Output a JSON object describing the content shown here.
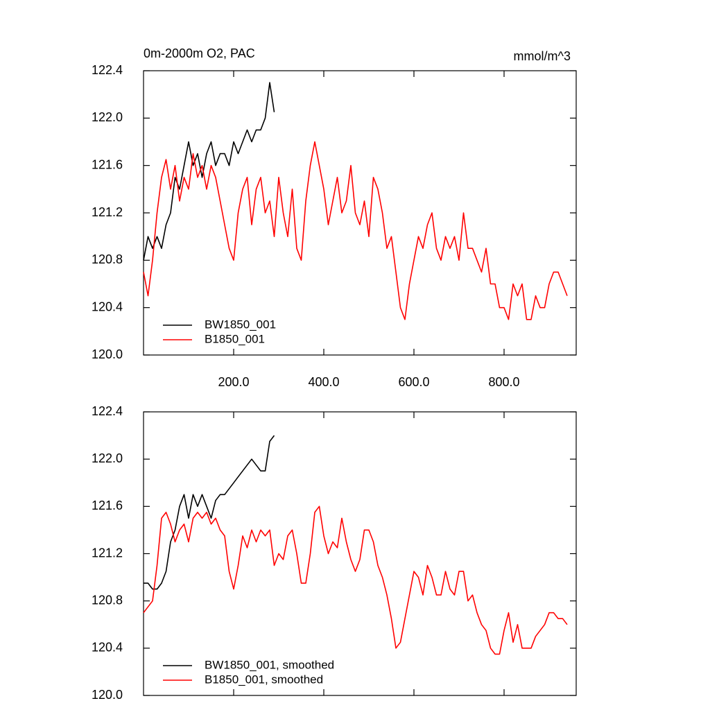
{
  "chart_data": [
    {
      "type": "line",
      "title": "0m-2000m O2, PAC",
      "units": "mmol/m^3",
      "xlim": [
        0,
        960
      ],
      "ylim": [
        120.0,
        122.4
      ],
      "xticks": [
        {
          "value": 200,
          "label": "200.0"
        },
        {
          "value": 400,
          "label": "400.0"
        },
        {
          "value": 600,
          "label": "600.0"
        },
        {
          "value": 800,
          "label": "800.0"
        }
      ],
      "yticks": [
        {
          "value": 120.0,
          "label": "120.0"
        },
        120.4,
        120.8,
        121.2,
        121.6,
        {
          "value": 122.0,
          "label": "122.0"
        },
        122.4
      ],
      "legend": "lower left",
      "series": [
        {
          "name": "BW1850_001",
          "color": "#000000",
          "x": [
            0,
            10,
            20,
            30,
            40,
            50,
            60,
            70,
            80,
            90,
            100,
            110,
            120,
            130,
            140,
            150,
            160,
            170,
            180,
            190,
            200,
            210,
            220,
            230,
            240,
            250,
            260,
            270,
            280,
            290
          ],
          "values": [
            120.8,
            121.0,
            120.9,
            121.0,
            120.9,
            121.1,
            121.2,
            121.5,
            121.4,
            121.6,
            121.8,
            121.6,
            121.7,
            121.5,
            121.7,
            121.8,
            121.6,
            121.7,
            121.7,
            121.6,
            121.8,
            121.7,
            121.8,
            121.9,
            121.8,
            121.9,
            121.9,
            122.0,
            122.3,
            122.05
          ]
        },
        {
          "name": "B1850_001",
          "color": "#ff0000",
          "x": [
            0,
            10,
            20,
            30,
            40,
            50,
            60,
            70,
            80,
            90,
            100,
            110,
            120,
            130,
            140,
            150,
            160,
            170,
            180,
            190,
            200,
            210,
            220,
            230,
            240,
            250,
            260,
            270,
            280,
            290,
            300,
            310,
            320,
            330,
            340,
            350,
            360,
            370,
            380,
            390,
            400,
            410,
            420,
            430,
            440,
            450,
            460,
            470,
            480,
            490,
            500,
            510,
            520,
            530,
            540,
            550,
            560,
            570,
            580,
            590,
            600,
            610,
            620,
            630,
            640,
            650,
            660,
            670,
            680,
            690,
            700,
            710,
            720,
            730,
            740,
            750,
            760,
            770,
            780,
            790,
            800,
            810,
            820,
            830,
            840,
            850,
            860,
            870,
            880,
            890,
            900,
            910,
            920,
            930,
            940
          ],
          "values": [
            120.7,
            120.5,
            120.8,
            121.2,
            121.5,
            121.65,
            121.4,
            121.6,
            121.3,
            121.5,
            121.4,
            121.7,
            121.5,
            121.6,
            121.4,
            121.6,
            121.5,
            121.3,
            121.1,
            120.9,
            120.8,
            121.2,
            121.4,
            121.5,
            121.1,
            121.4,
            121.5,
            121.2,
            121.3,
            121.0,
            121.5,
            121.2,
            121.0,
            121.4,
            120.9,
            120.8,
            121.3,
            121.6,
            121.8,
            121.6,
            121.4,
            121.1,
            121.3,
            121.5,
            121.2,
            121.3,
            121.6,
            121.2,
            121.1,
            121.3,
            121.0,
            121.5,
            121.4,
            121.2,
            120.9,
            121.0,
            120.7,
            120.4,
            120.3,
            120.6,
            120.8,
            121.0,
            120.9,
            121.1,
            121.2,
            120.9,
            120.8,
            121.0,
            120.9,
            121.0,
            120.8,
            121.2,
            120.9,
            120.9,
            120.8,
            120.7,
            120.9,
            120.6,
            120.6,
            120.4,
            120.4,
            120.3,
            120.6,
            120.5,
            120.6,
            120.3,
            120.3,
            120.5,
            120.4,
            120.4,
            120.6,
            120.7,
            120.7,
            120.6,
            120.5
          ]
        }
      ]
    },
    {
      "type": "line",
      "xlim": [
        0,
        960
      ],
      "ylim": [
        120.0,
        122.4
      ],
      "xticks": [
        200,
        400,
        600,
        800
      ],
      "xtick_labels": false,
      "yticks": [
        {
          "value": 120.0,
          "label": "120.0"
        },
        120.4,
        120.8,
        121.2,
        121.6,
        {
          "value": 122.0,
          "label": "122.0"
        },
        122.4
      ],
      "legend": "lower left",
      "series": [
        {
          "name": "BW1850_001, smoothed",
          "color": "#000000",
          "x": [
            0,
            10,
            20,
            30,
            40,
            50,
            60,
            70,
            80,
            90,
            100,
            110,
            120,
            130,
            140,
            150,
            160,
            170,
            180,
            190,
            200,
            210,
            220,
            230,
            240,
            250,
            260,
            270,
            280,
            290
          ],
          "values": [
            120.95,
            120.95,
            120.9,
            120.9,
            120.95,
            121.05,
            121.3,
            121.4,
            121.6,
            121.7,
            121.5,
            121.7,
            121.6,
            121.7,
            121.6,
            121.5,
            121.65,
            121.7,
            121.7,
            121.75,
            121.8,
            121.85,
            121.9,
            121.95,
            122.0,
            121.95,
            121.9,
            121.9,
            122.15,
            122.2
          ]
        },
        {
          "name": "B1850_001, smoothed",
          "color": "#ff0000",
          "x": [
            0,
            10,
            20,
            30,
            40,
            50,
            60,
            70,
            80,
            90,
            100,
            110,
            120,
            130,
            140,
            150,
            160,
            170,
            180,
            190,
            200,
            210,
            220,
            230,
            240,
            250,
            260,
            270,
            280,
            290,
            300,
            310,
            320,
            330,
            340,
            350,
            360,
            370,
            380,
            390,
            400,
            410,
            420,
            430,
            440,
            450,
            460,
            470,
            480,
            490,
            500,
            510,
            520,
            530,
            540,
            550,
            560,
            570,
            580,
            590,
            600,
            610,
            620,
            630,
            640,
            650,
            660,
            670,
            680,
            690,
            700,
            710,
            720,
            730,
            740,
            750,
            760,
            770,
            780,
            790,
            800,
            810,
            820,
            830,
            840,
            850,
            860,
            870,
            880,
            890,
            900,
            910,
            920,
            930,
            940
          ],
          "values": [
            120.7,
            120.75,
            120.8,
            121.1,
            121.5,
            121.55,
            121.45,
            121.3,
            121.4,
            121.45,
            121.3,
            121.5,
            121.55,
            121.5,
            121.55,
            121.45,
            121.5,
            121.4,
            121.35,
            121.05,
            120.9,
            121.1,
            121.35,
            121.25,
            121.4,
            121.3,
            121.4,
            121.35,
            121.4,
            121.1,
            121.2,
            121.15,
            121.35,
            121.4,
            121.2,
            120.95,
            120.95,
            121.2,
            121.55,
            121.6,
            121.35,
            121.2,
            121.3,
            121.25,
            121.5,
            121.3,
            121.15,
            121.05,
            121.15,
            121.4,
            121.4,
            121.3,
            121.1,
            121.0,
            120.85,
            120.65,
            120.4,
            120.45,
            120.65,
            120.85,
            121.05,
            121.0,
            120.85,
            121.1,
            121.0,
            120.85,
            120.85,
            121.05,
            120.9,
            120.85,
            121.05,
            121.05,
            120.8,
            120.85,
            120.7,
            120.6,
            120.55,
            120.4,
            120.35,
            120.35,
            120.55,
            120.7,
            120.45,
            120.6,
            120.4,
            120.4,
            120.4,
            120.5,
            120.55,
            120.6,
            120.7,
            120.7,
            120.65,
            120.65,
            120.6
          ]
        }
      ]
    }
  ]
}
